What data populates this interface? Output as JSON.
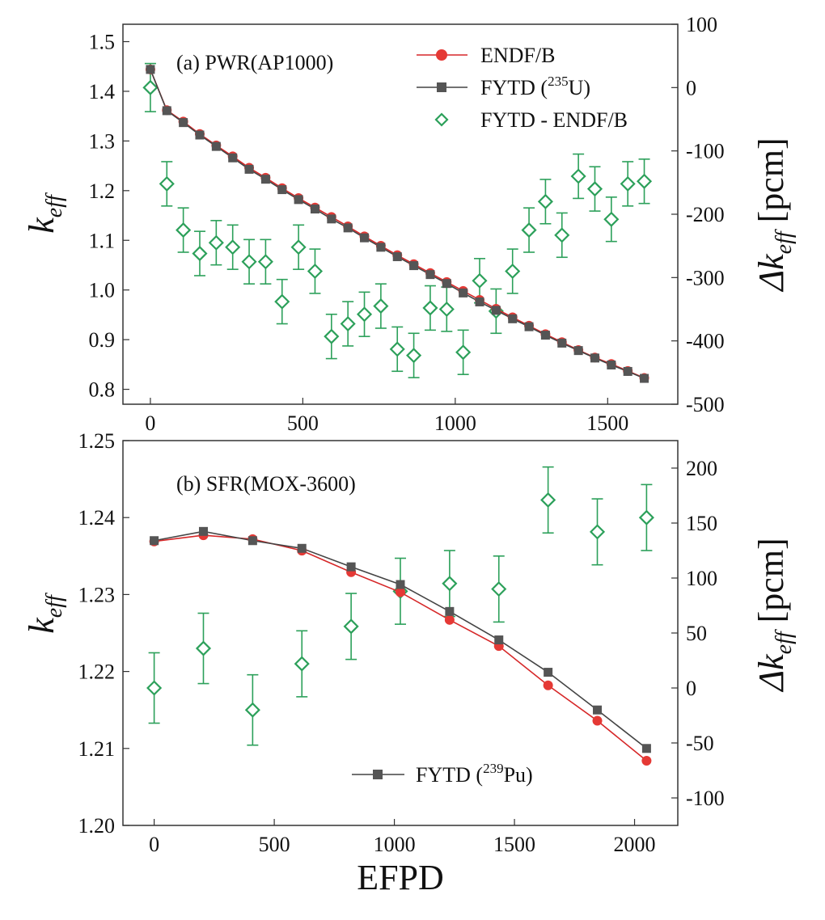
{
  "chart_data": [
    {
      "type": "line",
      "title": "(a) PWR(AP1000)",
      "xlabel": "",
      "ylabel": "k_eff",
      "y2label": "Δk_eff [pcm]",
      "xlim": [
        -90,
        1730
      ],
      "ylim": [
        0.77,
        1.535
      ],
      "y2lim": [
        -500,
        100
      ],
      "xticks": [
        0,
        500,
        1000,
        1500
      ],
      "yticks": [
        0.8,
        0.9,
        1.0,
        1.1,
        1.2,
        1.3,
        1.4,
        1.5
      ],
      "ytick_labels": [
        "0.8",
        "0.9",
        "1.0",
        "1.1",
        "1.2",
        "1.3",
        "1.4",
        "1.5"
      ],
      "y2ticks": [
        -500,
        -400,
        -300,
        -200,
        -100,
        0,
        100
      ],
      "legend": [
        {
          "name": "ENDF/B",
          "color": "#d62728",
          "marker": "circle"
        },
        {
          "name": "FYTD",
          "sup": "235",
          "suffix": "U)",
          "color": "#444444",
          "marker": "square"
        },
        {
          "name": "FYTD - ENDF/B",
          "color": "#2ca05a",
          "marker": "diamond"
        }
      ],
      "legend_labels": {
        "endf": "ENDF/B",
        "fytd_open": "FYTD (",
        "fytd_sup": "235",
        "fytd_close": "U)",
        "diff": "FYTD - ENDF/B"
      },
      "x": [
        0,
        54,
        108,
        162,
        216,
        270,
        324,
        378,
        432,
        486,
        540,
        594,
        648,
        702,
        756,
        810,
        864,
        918,
        972,
        1026,
        1080,
        1134,
        1188,
        1242,
        1296,
        1350,
        1404,
        1458,
        1512,
        1566,
        1620
      ],
      "series": [
        {
          "name": "ENDF/B",
          "color": "#d62728",
          "axis": "left",
          "values": [
            1.444,
            1.362,
            1.339,
            1.314,
            1.291,
            1.269,
            1.246,
            1.226,
            1.205,
            1.185,
            1.166,
            1.147,
            1.128,
            1.108,
            1.089,
            1.07,
            1.052,
            1.034,
            1.016,
            0.998,
            0.98,
            0.962,
            0.945,
            0.928,
            0.911,
            0.895,
            0.879,
            0.864,
            0.851,
            0.837,
            0.823
          ]
        },
        {
          "name": "FYTD (235U)",
          "color": "#444444",
          "axis": "left",
          "values": [
            1.444,
            1.361,
            1.337,
            1.312,
            1.289,
            1.266,
            1.243,
            1.223,
            1.202,
            1.182,
            1.163,
            1.143,
            1.125,
            1.105,
            1.086,
            1.067,
            1.049,
            1.031,
            1.013,
            0.994,
            0.976,
            0.959,
            0.942,
            0.926,
            0.909,
            0.893,
            0.878,
            0.863,
            0.849,
            0.836,
            0.822
          ]
        },
        {
          "name": "FYTD - ENDF/B",
          "color": "#2ca05a",
          "axis": "right",
          "values": [
            0,
            -152,
            -225,
            -262,
            -245,
            -252,
            -275,
            -275,
            -338,
            -252,
            -290,
            -393,
            -373,
            -358,
            -345,
            -413,
            -423,
            -348,
            -350,
            -418,
            -305,
            -353,
            -290,
            -225,
            -180,
            -233,
            -140,
            -160,
            -208,
            -152,
            -148
          ],
          "errors": [
            38,
            35,
            35,
            35,
            35,
            35,
            35,
            35,
            35,
            35,
            35,
            35,
            35,
            35,
            35,
            35,
            35,
            35,
            35,
            35,
            35,
            35,
            35,
            35,
            35,
            35,
            35,
            35,
            35,
            35,
            35
          ]
        }
      ]
    },
    {
      "type": "line",
      "title": "(b) SFR(MOX-3600)",
      "xlabel": "EFPD",
      "ylabel": "k_eff",
      "y2label": "Δk_eff [pcm]",
      "xlim": [
        -130,
        2180
      ],
      "ylim": [
        1.2,
        1.25
      ],
      "y2lim": [
        -125,
        225
      ],
      "xticks": [
        0,
        500,
        1000,
        1500,
        2000
      ],
      "yticks": [
        1.2,
        1.21,
        1.22,
        1.23,
        1.24,
        1.25
      ],
      "ytick_labels": [
        "1.20",
        "1.21",
        "1.22",
        "1.23",
        "1.24",
        "1.25"
      ],
      "y2ticks": [
        -100,
        -50,
        0,
        50,
        100,
        150,
        200
      ],
      "legend": [
        {
          "name": "FYTD",
          "sup": "239",
          "suffix": "Pu)",
          "color": "#444444",
          "marker": "square"
        }
      ],
      "legend_labels": {
        "fytd_open": "FYTD (",
        "fytd_sup": "239",
        "fytd_close": "Pu)"
      },
      "x": [
        0,
        205,
        410,
        615,
        820,
        1025,
        1230,
        1435,
        1640,
        1845,
        2050
      ],
      "series": [
        {
          "name": "ENDF/B",
          "color": "#d62728",
          "axis": "left",
          "values": [
            1.2369,
            1.2377,
            1.2372,
            1.2357,
            1.2329,
            1.2303,
            1.2267,
            1.2233,
            1.2182,
            1.2136,
            1.2084
          ]
        },
        {
          "name": "FYTD (239Pu)",
          "color": "#444444",
          "axis": "left",
          "values": [
            1.237,
            1.2382,
            1.237,
            1.236,
            1.2336,
            1.2313,
            1.2278,
            1.2241,
            1.2199,
            1.215,
            1.21
          ]
        },
        {
          "name": "FYTD - ENDF/B",
          "color": "#2ca05a",
          "axis": "right",
          "values": [
            0,
            36,
            -20,
            22,
            56,
            88,
            95,
            90,
            171,
            142,
            155
          ],
          "errors": [
            32,
            32,
            32,
            30,
            30,
            30,
            30,
            30,
            30,
            30,
            30
          ]
        }
      ]
    }
  ]
}
